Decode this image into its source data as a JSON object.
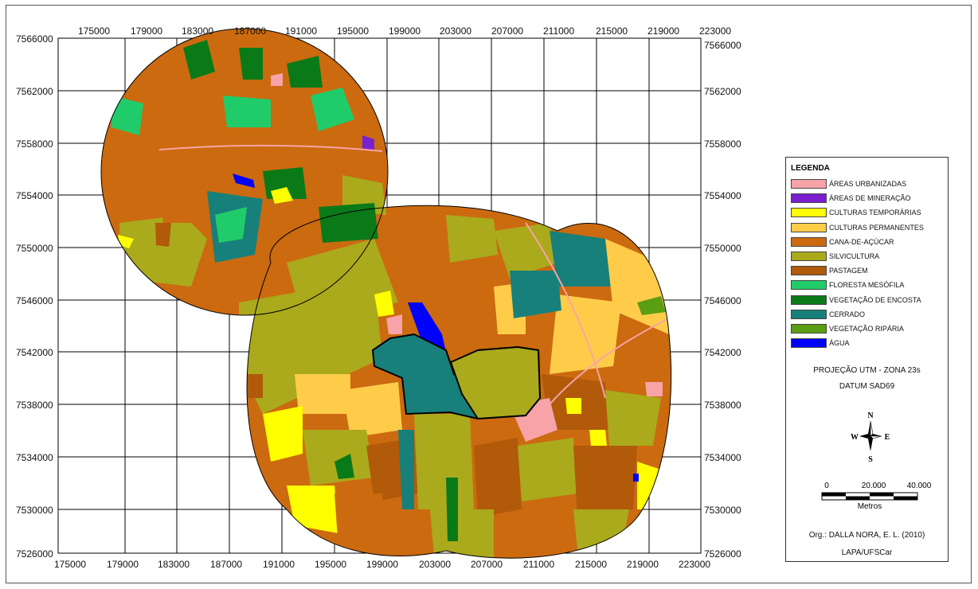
{
  "map": {
    "x_ticks": [
      "175000",
      "179000",
      "183000",
      "187000",
      "191000",
      "195000",
      "199000",
      "203000",
      "207000",
      "211000",
      "215000",
      "219000",
      "223000"
    ],
    "y_ticks": [
      "7566000",
      "7562000",
      "7558000",
      "7554000",
      "7550000",
      "7546000",
      "7542000",
      "7538000",
      "7534000",
      "7530000",
      "7526000"
    ],
    "water_color": "#0000ff",
    "border_color": "#000000"
  },
  "legend": {
    "title": "LEGENDA",
    "items": [
      {
        "label": "ÁREAS URBANIZADAS",
        "color": "#f7a3a8"
      },
      {
        "label": "ÁREAS DE MINERAÇÃO",
        "color": "#7a1fd0"
      },
      {
        "label": "CULTURAS TEMPORÁRIAS",
        "color": "#ffff00"
      },
      {
        "label": "CULTURAS PERMANENTES",
        "color": "#ffcc4a"
      },
      {
        "label": "CANA-DE-AÇÚCAR",
        "color": "#cc6a10"
      },
      {
        "label": "SILVICULTURA",
        "color": "#aaaa1c"
      },
      {
        "label": "PASTAGEM",
        "color": "#b05a0a"
      },
      {
        "label": "FLORESTA MESÓFILA",
        "color": "#20cc6a"
      },
      {
        "label": "VEGETAÇÃO DE ENCOSTA",
        "color": "#0a7a18"
      },
      {
        "label": "CERRADO",
        "color": "#18807a"
      },
      {
        "label": "VEGETAÇÃO RIPÁRIA",
        "color": "#5a9e14"
      },
      {
        "label": "ÁGUA",
        "color": "#0000ff"
      }
    ],
    "projection": "PROJEÇÃO UTM - ZONA 23s",
    "datum": "DATUM SAD69",
    "scale_labels": [
      "0",
      "20.000",
      "40.000"
    ],
    "scale_unit": "Metros",
    "compass": {
      "n": "N",
      "s": "S",
      "e": "E",
      "w": "W"
    },
    "org": "Org.: DALLA NORA, E. L. (2010)",
    "institution": "LAPA/UFSCar"
  }
}
